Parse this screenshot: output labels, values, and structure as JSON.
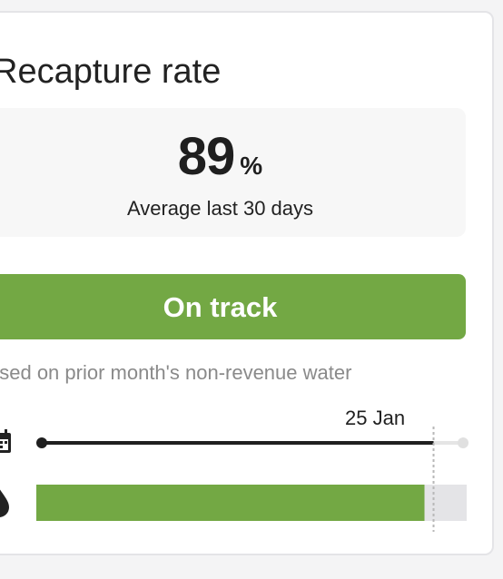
{
  "card": {
    "title": "Recapture rate",
    "metric": {
      "value": "89",
      "unit": "%",
      "caption": "Average last 30 days"
    },
    "status": {
      "label": "On track",
      "color": "#73a844"
    },
    "basis_note": "ased on prior month's non-revenue water",
    "timeline": {
      "date_label": "25 Jan",
      "progress_fraction": 0.93,
      "icons": [
        "calendar-icon",
        "water-drop-icon"
      ]
    }
  }
}
